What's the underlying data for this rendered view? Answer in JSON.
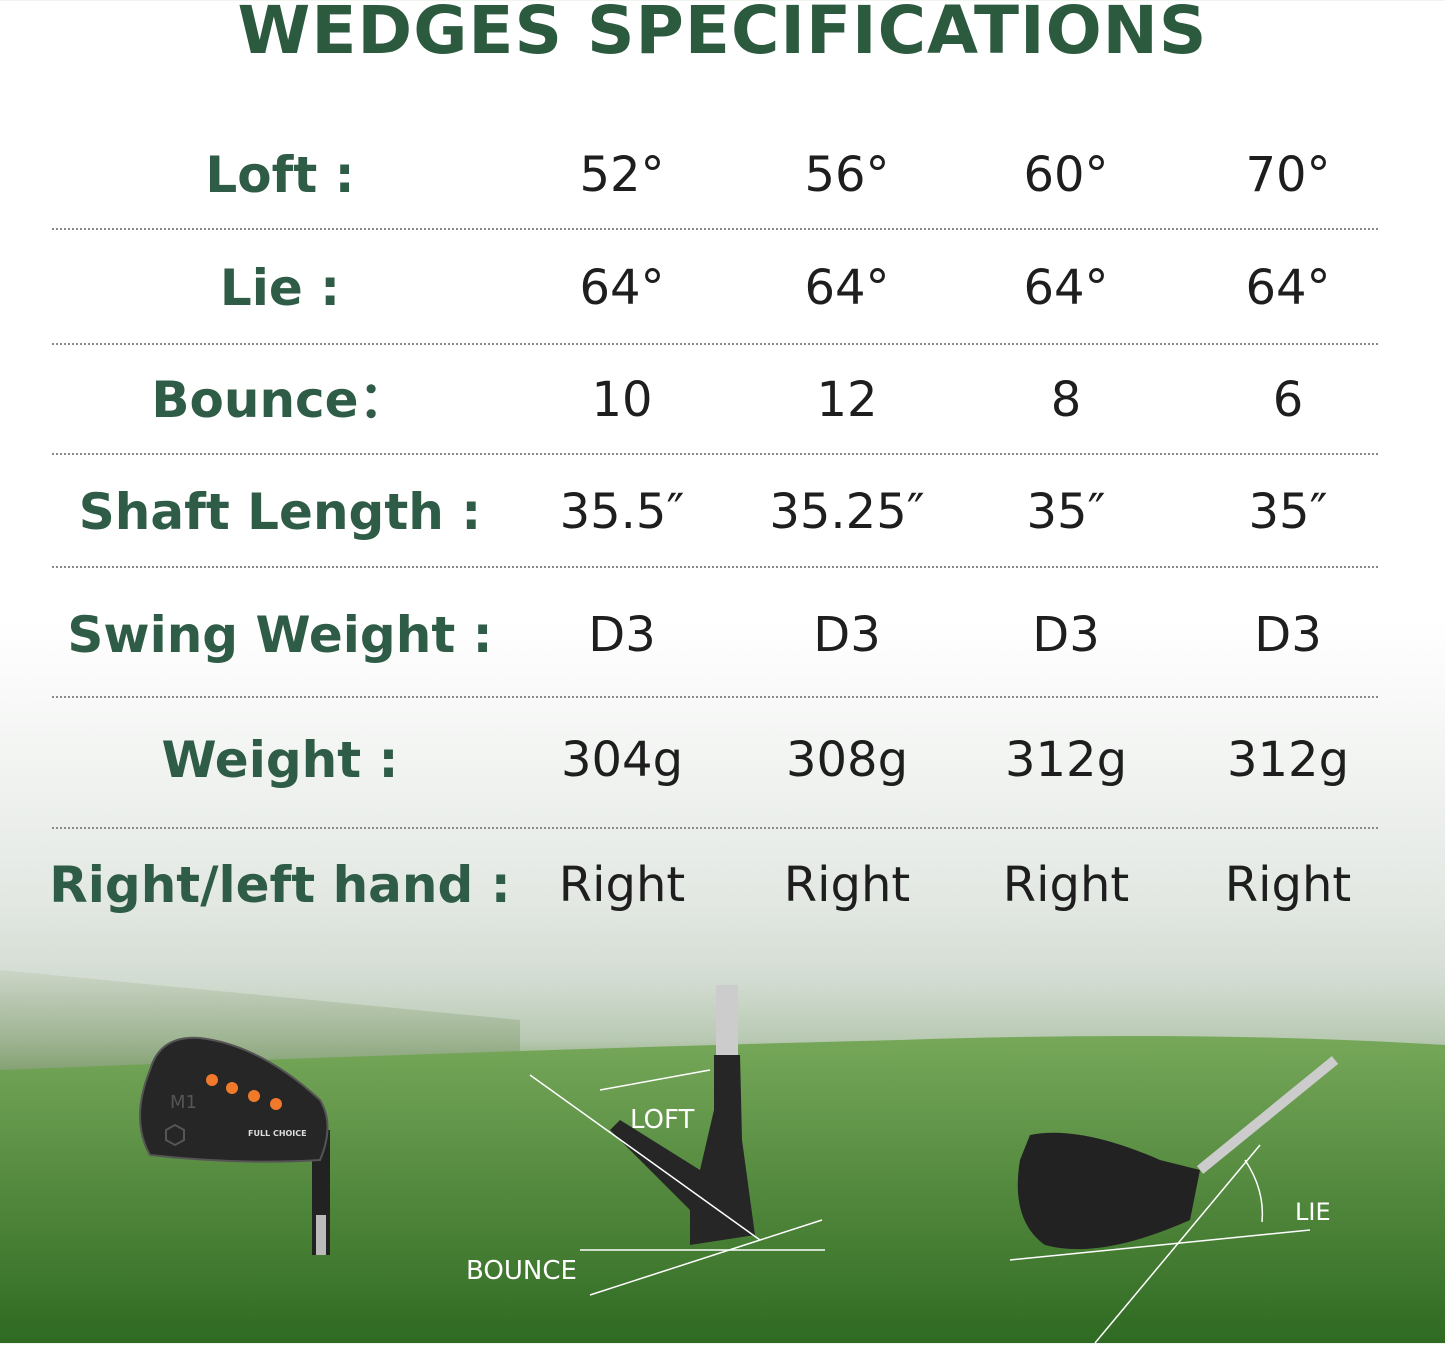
{
  "title": "WEDGES SPECIFICATIONS",
  "columns_count": 4,
  "rows": [
    {
      "label": "Loft :",
      "values": [
        "52°",
        "56°",
        "60°",
        "70°"
      ]
    },
    {
      "label": "Lie :",
      "values": [
        "64°",
        "64°",
        "64°",
        "64°"
      ]
    },
    {
      "label": "Bounce：",
      "values": [
        "10",
        "12",
        "8",
        "6"
      ]
    },
    {
      "label": "Shaft Length :",
      "values": [
        "35.5″",
        "35.25″",
        "35″",
        "35″"
      ]
    },
    {
      "label": "Swing Weight :",
      "values": [
        "D3",
        "D3",
        "D3",
        "D3"
      ]
    },
    {
      "label": "Weight :",
      "values": [
        "304g",
        "308g",
        "312g",
        "312g"
      ]
    },
    {
      "label": "Right/left hand :",
      "values": [
        "Right",
        "Right",
        "Right",
        "Right"
      ]
    }
  ],
  "diagram": {
    "loft_label": "LOFT",
    "bounce_label": "BOUNCE",
    "lie_label": "LIE"
  },
  "club_branding": {
    "model": "M1",
    "brand": "FULL CHOICE"
  },
  "colors": {
    "title": "#2c5a3e",
    "label": "#2e5c46",
    "accent": "#f07a2a"
  }
}
